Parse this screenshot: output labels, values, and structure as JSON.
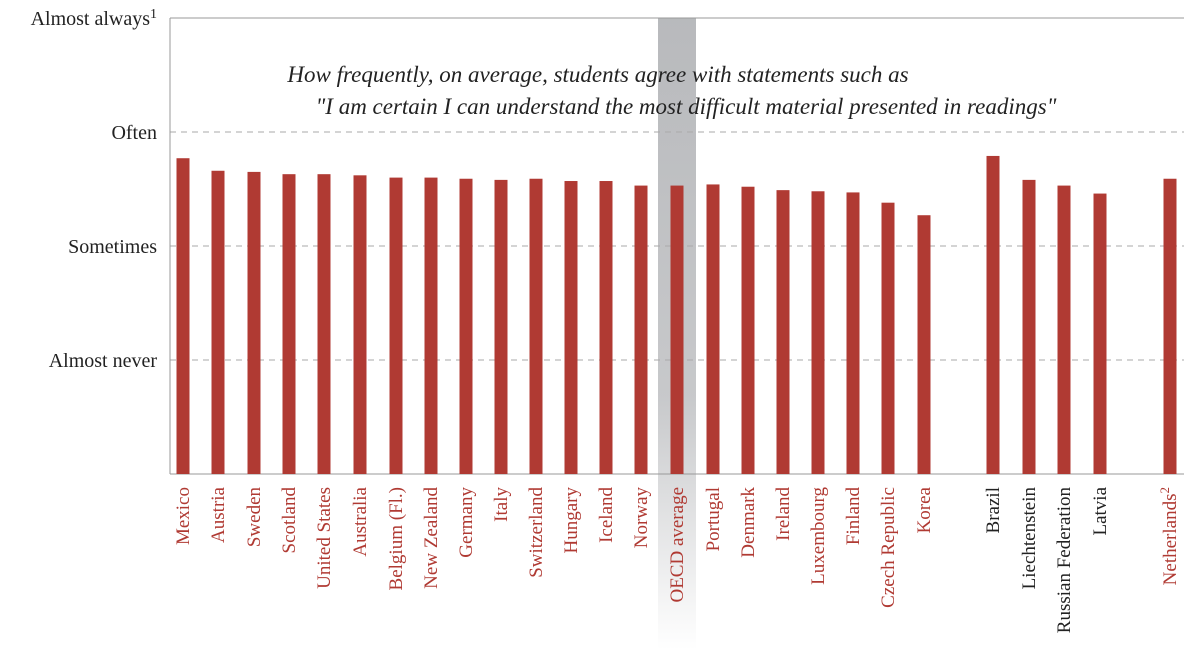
{
  "chart_data": {
    "type": "bar",
    "title": "How frequently, on average, students agree with statements such as",
    "subtitle": "\"I am certain I can understand the most difficult material presented in readings\"",
    "xlabel": "",
    "ylabel": "",
    "y_axis": {
      "ylim": [
        0,
        4
      ],
      "ticks": [
        {
          "value": 1,
          "label": "Almost never"
        },
        {
          "value": 2,
          "label": "Sometimes"
        },
        {
          "value": 3,
          "label": "Often"
        },
        {
          "value": 4,
          "label": "Almost always",
          "superscript": "1"
        }
      ],
      "gridlines": true
    },
    "bar_color": "#b03a33",
    "highlight_color": "#9a9ca0",
    "oecd_label_color": "#b03a33",
    "non_oecd_label_color": "#222222",
    "categories": [
      {
        "label": "Mexico",
        "value": 2.77,
        "group": "oecd"
      },
      {
        "label": "Austria",
        "value": 2.66,
        "group": "oecd"
      },
      {
        "label": "Sweden",
        "value": 2.65,
        "group": "oecd"
      },
      {
        "label": "Scotland",
        "value": 2.63,
        "group": "oecd"
      },
      {
        "label": "United States",
        "value": 2.63,
        "group": "oecd"
      },
      {
        "label": "Australia",
        "value": 2.62,
        "group": "oecd"
      },
      {
        "label": "Belgium (Fl.)",
        "value": 2.6,
        "group": "oecd"
      },
      {
        "label": "New Zealand",
        "value": 2.6,
        "group": "oecd"
      },
      {
        "label": "Germany",
        "value": 2.59,
        "group": "oecd"
      },
      {
        "label": "Italy",
        "value": 2.58,
        "group": "oecd"
      },
      {
        "label": "Switzerland",
        "value": 2.59,
        "group": "oecd"
      },
      {
        "label": "Hungary",
        "value": 2.57,
        "group": "oecd"
      },
      {
        "label": "Iceland",
        "value": 2.57,
        "group": "oecd"
      },
      {
        "label": "Norway",
        "value": 2.53,
        "group": "oecd"
      },
      {
        "label": "OECD average",
        "value": 2.53,
        "group": "oecd",
        "highlight": true
      },
      {
        "label": "Portugal",
        "value": 2.54,
        "group": "oecd"
      },
      {
        "label": "Denmark",
        "value": 2.52,
        "group": "oecd"
      },
      {
        "label": "Ireland",
        "value": 2.49,
        "group": "oecd"
      },
      {
        "label": "Luxembourg",
        "value": 2.48,
        "group": "oecd"
      },
      {
        "label": "Finland",
        "value": 2.47,
        "group": "oecd"
      },
      {
        "label": "Czech Republic",
        "value": 2.38,
        "group": "oecd"
      },
      {
        "label": "Korea",
        "value": 2.27,
        "group": "oecd"
      },
      {
        "label": "Brazil",
        "value": 2.79,
        "group": "non-oecd"
      },
      {
        "label": "Liechtenstein",
        "value": 2.58,
        "group": "non-oecd"
      },
      {
        "label": "Russian Federation",
        "value": 2.53,
        "group": "non-oecd"
      },
      {
        "label": "Latvia",
        "value": 2.46,
        "group": "non-oecd"
      },
      {
        "label": "Netherlands",
        "superscript": "2",
        "value": 2.59,
        "group": "oecd-separate"
      }
    ]
  }
}
